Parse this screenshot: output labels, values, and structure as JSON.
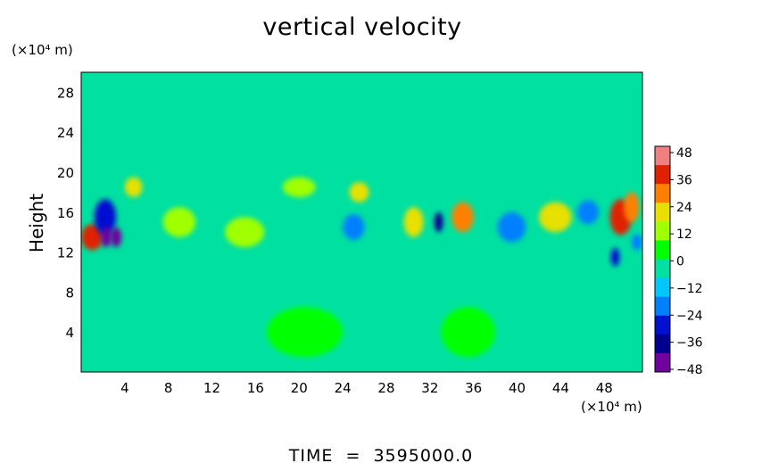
{
  "chart_data": {
    "type": "heatmap",
    "title": "vertical velocity",
    "xlabel": "",
    "ylabel": "Height",
    "x_unit_label": "(×10⁴ m)",
    "y_unit_label": "(×10⁴ m)",
    "x_ticks": [
      4,
      8,
      12,
      16,
      20,
      24,
      28,
      32,
      36,
      40,
      44,
      48
    ],
    "y_ticks": [
      4,
      8,
      12,
      16,
      20,
      24,
      28
    ],
    "xlim": [
      0,
      51.5
    ],
    "ylim": [
      0,
      30
    ],
    "colorbar": {
      "ticks": [
        48,
        36,
        24,
        12,
        0,
        -12,
        -24,
        -36,
        -48
      ],
      "range": [
        -48,
        48
      ],
      "colors": [
        "#f08080",
        "#e02000",
        "#ff8000",
        "#e8e000",
        "#a0ff00",
        "#00ff00",
        "#00e0a0",
        "#00c8ff",
        "#0080ff",
        "#0010d0",
        "#000090",
        "#7000a0"
      ]
    },
    "background_value": 0,
    "features": [
      {
        "x": 1.0,
        "y": 13.5,
        "value": 36,
        "rx": 1.0,
        "ry": 1.3
      },
      {
        "x": 2.2,
        "y": 15.5,
        "value": -24,
        "rx": 1.0,
        "ry": 1.8
      },
      {
        "x": 2.3,
        "y": 13.5,
        "value": -40,
        "rx": 0.5,
        "ry": 1.0
      },
      {
        "x": 3.2,
        "y": 13.5,
        "value": -40,
        "rx": 0.5,
        "ry": 1.0
      },
      {
        "x": 4.8,
        "y": 18.5,
        "value": 24,
        "rx": 0.8,
        "ry": 1.0
      },
      {
        "x": 9.0,
        "y": 15.0,
        "value": 10,
        "rx": 1.5,
        "ry": 1.5
      },
      {
        "x": 15.0,
        "y": 14.0,
        "value": 12,
        "rx": 1.8,
        "ry": 1.5
      },
      {
        "x": 20.0,
        "y": 18.5,
        "value": 10,
        "rx": 1.5,
        "ry": 1.0
      },
      {
        "x": 25.5,
        "y": 18.0,
        "value": 18,
        "rx": 0.9,
        "ry": 1.0
      },
      {
        "x": 25.0,
        "y": 14.5,
        "value": -18,
        "rx": 1.0,
        "ry": 1.3
      },
      {
        "x": 30.5,
        "y": 15.0,
        "value": 24,
        "rx": 0.9,
        "ry": 1.5
      },
      {
        "x": 32.8,
        "y": 15.0,
        "value": -36,
        "rx": 0.4,
        "ry": 1.0
      },
      {
        "x": 35.0,
        "y": 15.5,
        "value": 28,
        "rx": 1.0,
        "ry": 1.5
      },
      {
        "x": 39.5,
        "y": 14.5,
        "value": -22,
        "rx": 1.3,
        "ry": 1.5
      },
      {
        "x": 43.5,
        "y": 15.5,
        "value": 22,
        "rx": 1.5,
        "ry": 1.5
      },
      {
        "x": 46.5,
        "y": 16.0,
        "value": -16,
        "rx": 1.0,
        "ry": 1.2
      },
      {
        "x": 49.5,
        "y": 15.5,
        "value": 36,
        "rx": 1.0,
        "ry": 1.8
      },
      {
        "x": 50.5,
        "y": 16.5,
        "value": 32,
        "rx": 0.7,
        "ry": 1.5
      },
      {
        "x": 49.0,
        "y": 11.5,
        "value": -30,
        "rx": 0.4,
        "ry": 0.9
      },
      {
        "x": 51.0,
        "y": 13.0,
        "value": -20,
        "rx": 0.5,
        "ry": 0.8
      },
      {
        "x": 20.5,
        "y": 4.0,
        "value": 6,
        "rx": 3.5,
        "ry": 2.5
      },
      {
        "x": 35.5,
        "y": 4.0,
        "value": 6,
        "rx": 2.5,
        "ry": 2.5
      },
      {
        "x": 29.0,
        "y": 3.5,
        "value": -5,
        "rx": 2.0,
        "ry": 2.5
      },
      {
        "x": 42.0,
        "y": 3.5,
        "value": -4,
        "rx": 2.0,
        "ry": 2.5
      },
      {
        "x": 10.0,
        "y": 4.0,
        "value": -3,
        "rx": 2.5,
        "ry": 2.5
      }
    ]
  },
  "footer": {
    "time_label": "TIME  =  3595000.0"
  }
}
